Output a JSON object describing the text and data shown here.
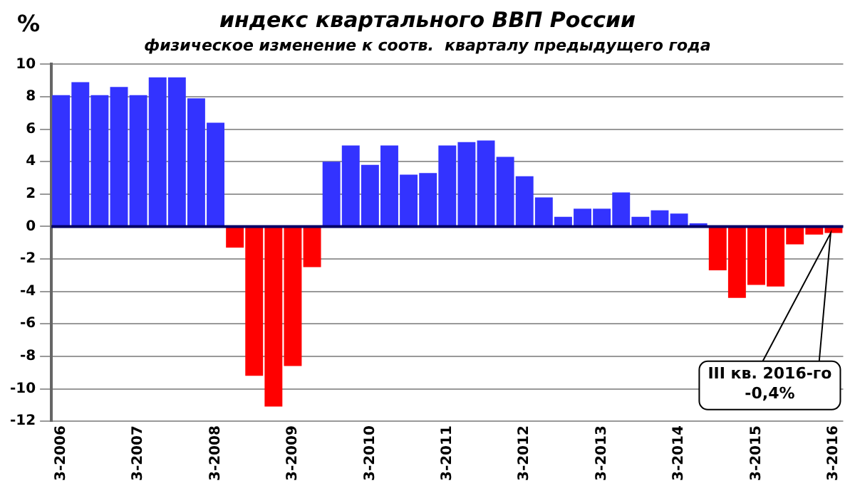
{
  "chart_data": {
    "type": "bar",
    "title": "индекс квартального ВВП России",
    "subtitle": "физическое изменение к соотв.  кварталу предыдущего года",
    "ylabel": "%",
    "categories": [
      "3-2006",
      null,
      null,
      null,
      "3-2007",
      null,
      null,
      null,
      "3-2008",
      null,
      null,
      null,
      "3-2009",
      null,
      null,
      null,
      "3-2010",
      null,
      null,
      null,
      "3-2011",
      null,
      null,
      null,
      "3-2012",
      null,
      null,
      null,
      "3-2013",
      null,
      null,
      null,
      "3-2014",
      null,
      null,
      null,
      "3-2015",
      null,
      null,
      null,
      "3-2016"
    ],
    "values": [
      8.1,
      8.9,
      8.1,
      8.6,
      8.1,
      9.2,
      9.2,
      7.9,
      6.4,
      -1.3,
      -9.2,
      -11.1,
      -8.6,
      -2.5,
      4.0,
      5.0,
      3.8,
      5.0,
      3.2,
      3.3,
      5.0,
      5.2,
      5.3,
      4.3,
      3.1,
      1.8,
      0.6,
      1.1,
      1.1,
      2.1,
      0.6,
      1.0,
      0.8,
      0.2,
      -2.7,
      -4.4,
      -3.6,
      -3.7,
      -1.1,
      -0.5,
      -0.4
    ],
    "colors": [
      "#3333ff",
      "#3333ff",
      "#3333ff",
      "#3333ff",
      "#3333ff",
      "#3333ff",
      "#3333ff",
      "#3333ff",
      "#3333ff",
      "#ff0000",
      "#ff0000",
      "#ff0000",
      "#ff0000",
      "#ff0000",
      "#3333ff",
      "#3333ff",
      "#3333ff",
      "#3333ff",
      "#3333ff",
      "#3333ff",
      "#3333ff",
      "#3333ff",
      "#3333ff",
      "#3333ff",
      "#3333ff",
      "#3333ff",
      "#3333ff",
      "#3333ff",
      "#3333ff",
      "#3333ff",
      "#3333ff",
      "#3333ff",
      "#3333ff",
      "#3333ff",
      "#ff0000",
      "#ff0000",
      "#ff0000",
      "#ff0000",
      "#ff0000",
      "#ff0000",
      "#ff0000"
    ],
    "ylim": [
      -12,
      10
    ],
    "yticks": [
      -12,
      -10,
      -8,
      -6,
      -4,
      -2,
      0,
      2,
      4,
      6,
      8,
      10
    ],
    "grid": "y",
    "legend": false,
    "ref_lines": [
      {
        "axis": "y",
        "value": 0,
        "color": "#000066"
      }
    ],
    "annotations": [
      "III кв. 2016-го\n-0,4%"
    ]
  }
}
